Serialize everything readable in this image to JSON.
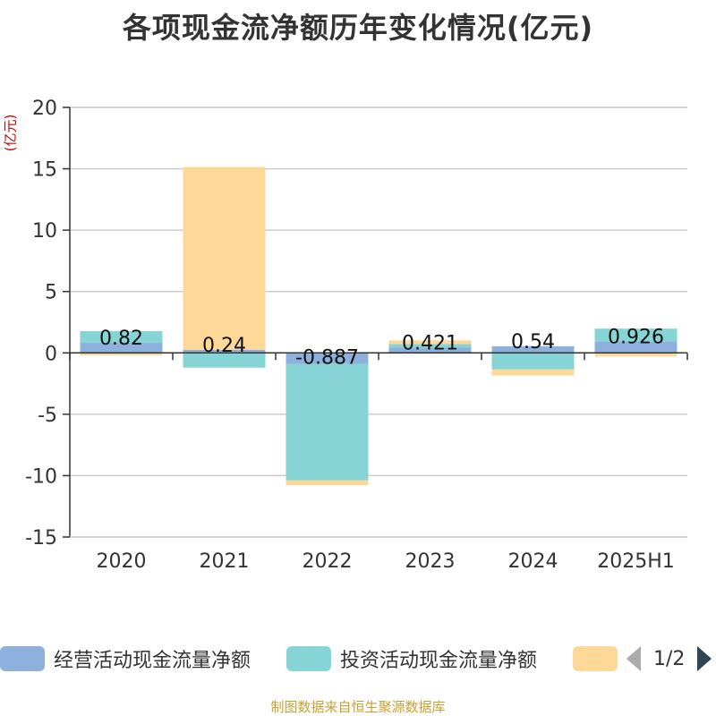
{
  "title": "各项现金流净额历年变化情况(亿元)",
  "unit_label": "(亿元)",
  "footer": "制图数据来自恒生聚源数据库",
  "legend": {
    "items": [
      {
        "label": "经营活动现金流量净额",
        "color": "#8eb0dc"
      },
      {
        "label": "投资活动现金流量净额",
        "color": "#86d4d6"
      },
      {
        "label": "",
        "color": "#fdd898"
      }
    ],
    "page": "1/2"
  },
  "chart_data": {
    "type": "bar",
    "stacked": true,
    "categories": [
      "2020",
      "2021",
      "2022",
      "2023",
      "2024",
      "2025H1"
    ],
    "series": [
      {
        "name": "经营活动现金流量净额",
        "color": "#8eb0dc",
        "values": [
          0.82,
          0.24,
          -0.887,
          0.421,
          0.54,
          0.926
        ]
      },
      {
        "name": "投资活动现金流量净额",
        "color": "#86d4d6",
        "values": [
          0.95,
          -1.2,
          -9.5,
          0.3,
          -1.35,
          1.05
        ]
      },
      {
        "name": "",
        "color": "#fdd898",
        "values": [
          -0.2,
          14.9,
          -0.4,
          0.3,
          -0.5,
          -0.3
        ]
      }
    ],
    "data_labels": [
      "0.82",
      "0.24",
      "-0.887",
      "0.421",
      "0.54",
      "0.926"
    ],
    "yticks": [
      20,
      15,
      10,
      5,
      0,
      -5,
      -10,
      -15
    ],
    "ylim": [
      -15,
      20
    ],
    "grid": true,
    "legend_position": "bottom"
  }
}
